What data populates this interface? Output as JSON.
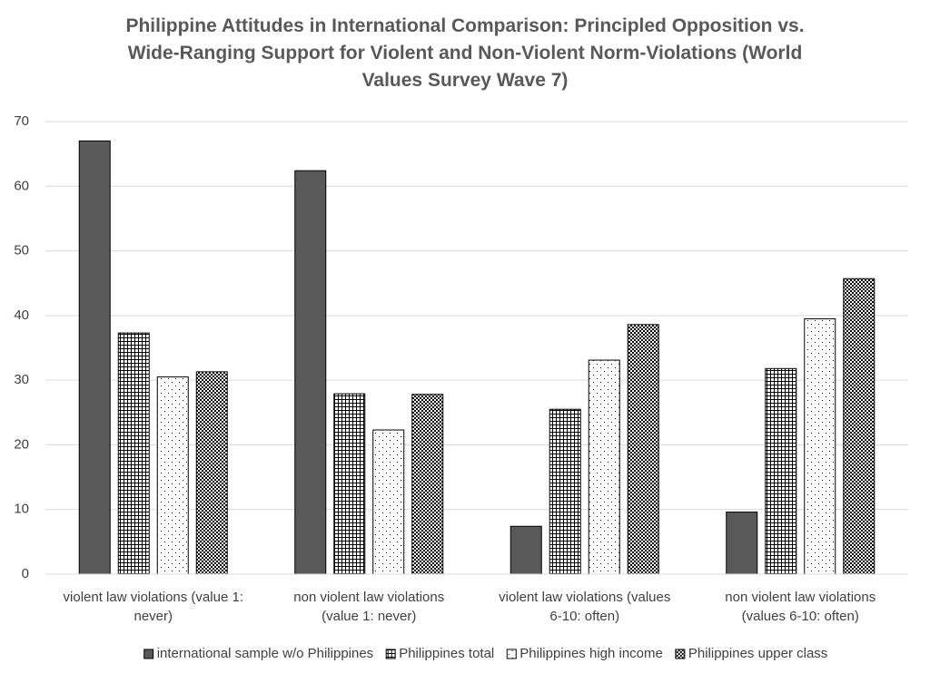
{
  "chart_data": {
    "type": "bar",
    "title": "Philippine Attitudes in International Comparison: Principled Opposition vs. Wide-Ranging Support for Violent and Non-Violent Norm-Violations (World Values Survey Wave 7)",
    "categories": [
      "violent law violations (value 1: never)",
      "non violent law violations (value 1: never)",
      "violent law violations (values 6-10: often)",
      "non violent law violations (values 6-10: often)"
    ],
    "series": [
      {
        "name": "international sample w/o Philippines",
        "color": "#595959",
        "pattern": "solid",
        "values": [
          67,
          62.4,
          7.4,
          9.6
        ]
      },
      {
        "name": "Philippines total",
        "color": "#000000",
        "pattern": "grid",
        "values": [
          37.3,
          27.9,
          25.5,
          31.8
        ]
      },
      {
        "name": "Philippines high income",
        "color": "#000000",
        "pattern": "sparse-dots",
        "values": [
          30.5,
          22.3,
          33.1,
          39.5
        ]
      },
      {
        "name": "Philippines upper class",
        "color": "#000000",
        "pattern": "dense-dots",
        "values": [
          31.3,
          27.8,
          38.6,
          45.7
        ]
      }
    ],
    "ylim": [
      0,
      70
    ],
    "yticks": [
      0,
      10,
      20,
      30,
      40,
      50,
      60,
      70
    ],
    "grid": true,
    "legend": "bottom"
  }
}
